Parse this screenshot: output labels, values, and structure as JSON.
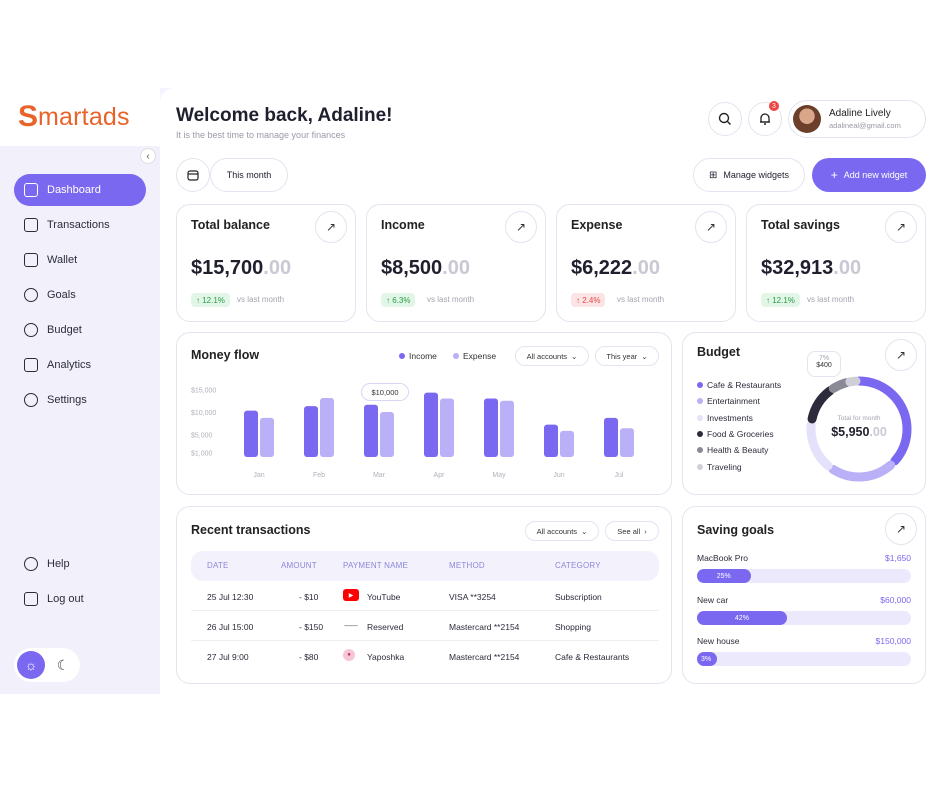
{
  "brand": {
    "logo_first": "S",
    "logo_rest": "martads"
  },
  "sidebar": {
    "items": [
      {
        "label": "Dashboard",
        "icon": "grid-icon",
        "active": true
      },
      {
        "label": "Transactions",
        "icon": "transactions-icon"
      },
      {
        "label": "Wallet",
        "icon": "wallet-icon"
      },
      {
        "label": "Goals",
        "icon": "target-icon"
      },
      {
        "label": "Budget",
        "icon": "coin-icon"
      },
      {
        "label": "Analytics",
        "icon": "analytics-icon"
      },
      {
        "label": "Settings",
        "icon": "gear-icon"
      }
    ],
    "bottom": [
      {
        "label": "Help",
        "icon": "help-icon"
      },
      {
        "label": "Log out",
        "icon": "logout-icon"
      }
    ]
  },
  "header": {
    "title": "Welcome back, Adaline!",
    "subtitle": "It is the best time to manage your finances",
    "notification_count": "3",
    "user_name": "Adaline Lively",
    "user_email": "adalineal@gmail.com"
  },
  "toolbar": {
    "period": "This month",
    "manage_widgets": "Manage widgets",
    "add_widget": "Add new widget"
  },
  "stats": [
    {
      "title": "Total balance",
      "value": "$15,700",
      "decimals": ".00",
      "change": "12.1%",
      "direction": "up",
      "note": "vs last month"
    },
    {
      "title": "Income",
      "value": "$8,500",
      "decimals": ".00",
      "change": "6.3%",
      "direction": "up",
      "note": "vs last month"
    },
    {
      "title": "Expense",
      "value": "$6,222",
      "decimals": ".00",
      "change": "2.4%",
      "direction": "down",
      "note": "vs last month"
    },
    {
      "title": "Total savings",
      "value": "$32,913",
      "decimals": ".00",
      "change": "12.1%",
      "direction": "up",
      "note": "vs last month"
    }
  ],
  "money_flow": {
    "title": "Money flow",
    "legend_income": "Income",
    "legend_expense": "Expense",
    "filter_accounts": "All accounts",
    "filter_period": "This year",
    "tooltip": "$10,000"
  },
  "chart_data": {
    "type": "bar",
    "categories": [
      "Jan",
      "Feb",
      "Mar",
      "Apr",
      "May",
      "Jun",
      "Jul"
    ],
    "series": [
      {
        "name": "Income",
        "values": [
          10300,
          11300,
          11600,
          14300,
          13000,
          7200,
          8700
        ]
      },
      {
        "name": "Expense",
        "values": [
          8700,
          13100,
          10000,
          13000,
          12500,
          5800,
          6400
        ]
      }
    ],
    "y_ticks": [
      "$15,000",
      "$10,000",
      "$5,000",
      "$1,000"
    ],
    "ylim": [
      0,
      16000
    ],
    "colors": {
      "Income": "#7b68f0",
      "Expense": "#b9b0f7"
    }
  },
  "budget": {
    "title": "Budget",
    "categories": [
      {
        "label": "Cafe & Restaurants",
        "color": "#7b68f0"
      },
      {
        "label": "Entertainment",
        "color": "#b9b0f7"
      },
      {
        "label": "Investments",
        "color": "#e4e1fb"
      },
      {
        "label": "Food & Groceries",
        "color": "#2b2b3b"
      },
      {
        "label": "Health & Beauty",
        "color": "#8a8a96"
      },
      {
        "label": "Traveling",
        "color": "#cfcfd8"
      }
    ],
    "center_label": "Total for month",
    "center_value": "$5,950",
    "center_decimals": ".00",
    "tooltip_percent": "7%",
    "tooltip_value": "$400"
  },
  "transactions": {
    "title": "Recent transactions",
    "filter": "All accounts",
    "see_all": "See all",
    "columns": [
      "DATE",
      "AMOUNT",
      "PAYMENT NAME",
      "METHOD",
      "CATEGORY"
    ],
    "rows": [
      {
        "date": "25 Jul 12:30",
        "amount": "- $10",
        "name": "YouTube",
        "method": "VISA **3254",
        "category": "Subscription"
      },
      {
        "date": "26 Jul 15:00",
        "amount": "- $150",
        "name": "Reserved",
        "method": "Mastercard **2154",
        "category": "Shopping"
      },
      {
        "date": "27 Jul 9:00",
        "amount": "- $80",
        "name": "Yaposhka",
        "method": "Mastercard **2154",
        "category": "Cafe & Restaurants"
      }
    ]
  },
  "saving_goals": {
    "title": "Saving goals",
    "goals": [
      {
        "name": "MacBook Pro",
        "amount": "$1,650",
        "percent_label": "25%",
        "progress": 0.25
      },
      {
        "name": "New car",
        "amount": "$60,000",
        "percent_label": "42%",
        "progress": 0.42
      },
      {
        "name": "New house",
        "amount": "$150,000",
        "percent_label": "3%",
        "progress": 0.03
      }
    ]
  }
}
